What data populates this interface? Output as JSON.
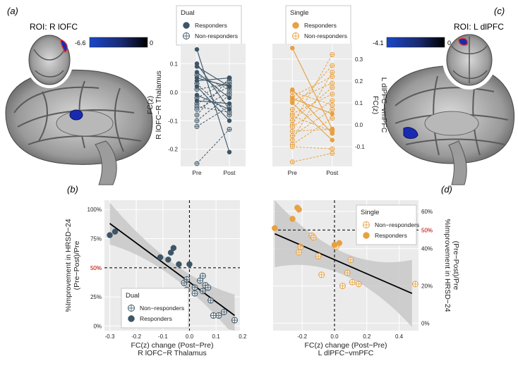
{
  "panel_labels": {
    "a": "(a)",
    "b": "(b)",
    "c": "(c)",
    "d": "(d)"
  },
  "brain_left": {
    "roi_title": "ROI: R lOFC",
    "cbar_min": "-6.6",
    "cbar_max": "0"
  },
  "brain_right": {
    "roi_title": "ROI: L dlPFC",
    "cbar_min": "-4.1",
    "cbar_max": "0"
  },
  "colors": {
    "dual": "#3d5566",
    "single": "#e8a040",
    "red_text": "#e8332a",
    "ci_band": "#c8c8c8",
    "panel_bg": "#ebebeb"
  },
  "chart_data": [
    {
      "id": "dual_prepost",
      "type": "line",
      "legend_title": "Dual",
      "legend": [
        "Responders",
        "Non-responders"
      ],
      "ylabel": "FC(z)\nR lOFC−R Thalamus",
      "categories": [
        "Pre",
        "Post"
      ],
      "y_ticks": [
        "0.1",
        "0.0",
        "-0.1",
        "-0.2"
      ],
      "ylim": [
        -0.26,
        0.17
      ],
      "responders": [
        [
          0.15,
          -0.21
        ],
        [
          0.1,
          -0.06
        ],
        [
          0.07,
          -0.02
        ],
        [
          0.05,
          0.02
        ],
        [
          0.09,
          0.02
        ],
        [
          0.04,
          0.05
        ],
        [
          0.02,
          -0.1
        ],
        [
          -0.01,
          -0.06
        ],
        [
          -0.03,
          -0.04
        ]
      ],
      "non_responders": [
        [
          0.06,
          0.01
        ],
        [
          0.03,
          -0.08
        ],
        [
          0.01,
          0.03
        ],
        [
          -0.02,
          0.04
        ],
        [
          -0.04,
          0.02
        ],
        [
          -0.05,
          -0.07
        ],
        [
          -0.06,
          0.0
        ],
        [
          -0.08,
          0.05
        ],
        [
          -0.1,
          -0.01
        ],
        [
          -0.12,
          -0.05
        ],
        [
          -0.25,
          -0.13
        ]
      ]
    },
    {
      "id": "single_prepost",
      "type": "line",
      "legend_title": "Single",
      "legend": [
        "Responders",
        "Non-responders"
      ],
      "ylabel": "FC(z)\nL dlPFC−vmPFC",
      "categories": [
        "Pre",
        "Post"
      ],
      "y_ticks": [
        "0.3",
        "0.2",
        "0.1",
        "0.0",
        "-0.1"
      ],
      "ylim": [
        -0.19,
        0.37
      ],
      "responders": [
        [
          0.35,
          -0.02
        ],
        [
          0.16,
          -0.04
        ],
        [
          0.12,
          0.05
        ],
        [
          0.1,
          -0.07
        ]
      ],
      "non_responders": [
        [
          0.13,
          0.22
        ],
        [
          0.15,
          0.09
        ],
        [
          0.11,
          0.19
        ],
        [
          0.07,
          0.27
        ],
        [
          0.05,
          0.14
        ],
        [
          0.04,
          -0.03
        ],
        [
          0.02,
          0.17
        ],
        [
          0.0,
          0.32
        ],
        [
          -0.01,
          0.11
        ],
        [
          -0.03,
          -0.02
        ],
        [
          -0.05,
          0.07
        ],
        [
          -0.07,
          0.24
        ],
        [
          -0.09,
          0.03
        ],
        [
          -0.1,
          -0.11
        ],
        [
          -0.17,
          -0.13
        ]
      ]
    },
    {
      "id": "dual_scatter",
      "type": "scatter",
      "legend_title": "Dual",
      "legend": [
        "Non−responders",
        "Responders"
      ],
      "xlabel": "FC(z) change (Post−Pre)\nR lOFC−R Thalamus",
      "ylabel": "%Improvement in HRSD−24\n(Pre−Post)/Pre",
      "x_ticks": [
        "-0.3",
        "-0.2",
        "-0.1",
        "0.0",
        "0.1",
        "0.2"
      ],
      "y_ticks": [
        "100%",
        "75%",
        "50%",
        "25%",
        "0%"
      ],
      "xlim": [
        -0.32,
        0.19
      ],
      "ylim": [
        -0.04,
        1.08
      ],
      "threshold_y": 0.5,
      "threshold_x": 0.0,
      "threshold_label": "50%",
      "responders": [
        [
          -0.3,
          0.78
        ],
        [
          -0.28,
          0.81
        ],
        [
          -0.11,
          0.59
        ],
        [
          -0.07,
          0.63
        ],
        [
          -0.06,
          0.67
        ],
        [
          -0.08,
          0.57
        ],
        [
          -0.04,
          0.53
        ],
        [
          0.0,
          0.53
        ]
      ],
      "non_responders": [
        [
          -0.02,
          0.37
        ],
        [
          -0.01,
          0.31
        ],
        [
          -0.01,
          0.4
        ],
        [
          0.02,
          0.28
        ],
        [
          0.02,
          0.33
        ],
        [
          0.05,
          0.43
        ],
        [
          0.04,
          0.39
        ],
        [
          0.05,
          0.3
        ],
        [
          0.06,
          0.35
        ],
        [
          0.07,
          0.33
        ],
        [
          0.08,
          0.22
        ],
        [
          0.09,
          0.09
        ],
        [
          0.11,
          0.09
        ],
        [
          0.13,
          0.12
        ],
        [
          0.17,
          0.05
        ]
      ],
      "fit": {
        "x": [
          -0.3,
          0.17
        ],
        "y": [
          0.88,
          0.09
        ]
      }
    },
    {
      "id": "single_scatter",
      "type": "scatter",
      "legend_title": "Single",
      "legend": [
        "Non−responders",
        "Responders"
      ],
      "xlabel": "FC(z) change (Post−Pre)\nL dlPFC−vmPFC",
      "ylabel": "%Improvement in HRSD−24\n(Pre−Post)/Pre",
      "x_ticks": [
        "-0.2",
        "0.0",
        "0.2",
        "0.4"
      ],
      "y_ticks": [
        "60%",
        "50%",
        "40%",
        "20%",
        "0%"
      ],
      "xlim": [
        -0.38,
        0.52
      ],
      "ylim": [
        -0.04,
        0.66
      ],
      "threshold_y": 0.5,
      "threshold_x": 0.0,
      "threshold_label": "50%",
      "responders": [
        [
          -0.37,
          0.51
        ],
        [
          -0.26,
          0.56
        ],
        [
          -0.23,
          0.62
        ],
        [
          -0.22,
          0.61
        ],
        [
          0.0,
          0.42
        ],
        [
          0.03,
          0.43
        ]
      ],
      "non_responders": [
        [
          -0.22,
          0.38
        ],
        [
          -0.21,
          0.41
        ],
        [
          -0.14,
          0.47
        ],
        [
          -0.13,
          0.46
        ],
        [
          -0.1,
          0.36
        ],
        [
          -0.08,
          0.26
        ],
        [
          0.01,
          0.41
        ],
        [
          0.05,
          0.2
        ],
        [
          0.08,
          0.27
        ],
        [
          0.1,
          0.34
        ],
        [
          0.11,
          0.22
        ],
        [
          0.15,
          0.21
        ],
        [
          0.5,
          0.21
        ]
      ],
      "fit": {
        "x": [
          -0.37,
          0.48
        ],
        "y": [
          0.48,
          0.16
        ]
      }
    }
  ]
}
